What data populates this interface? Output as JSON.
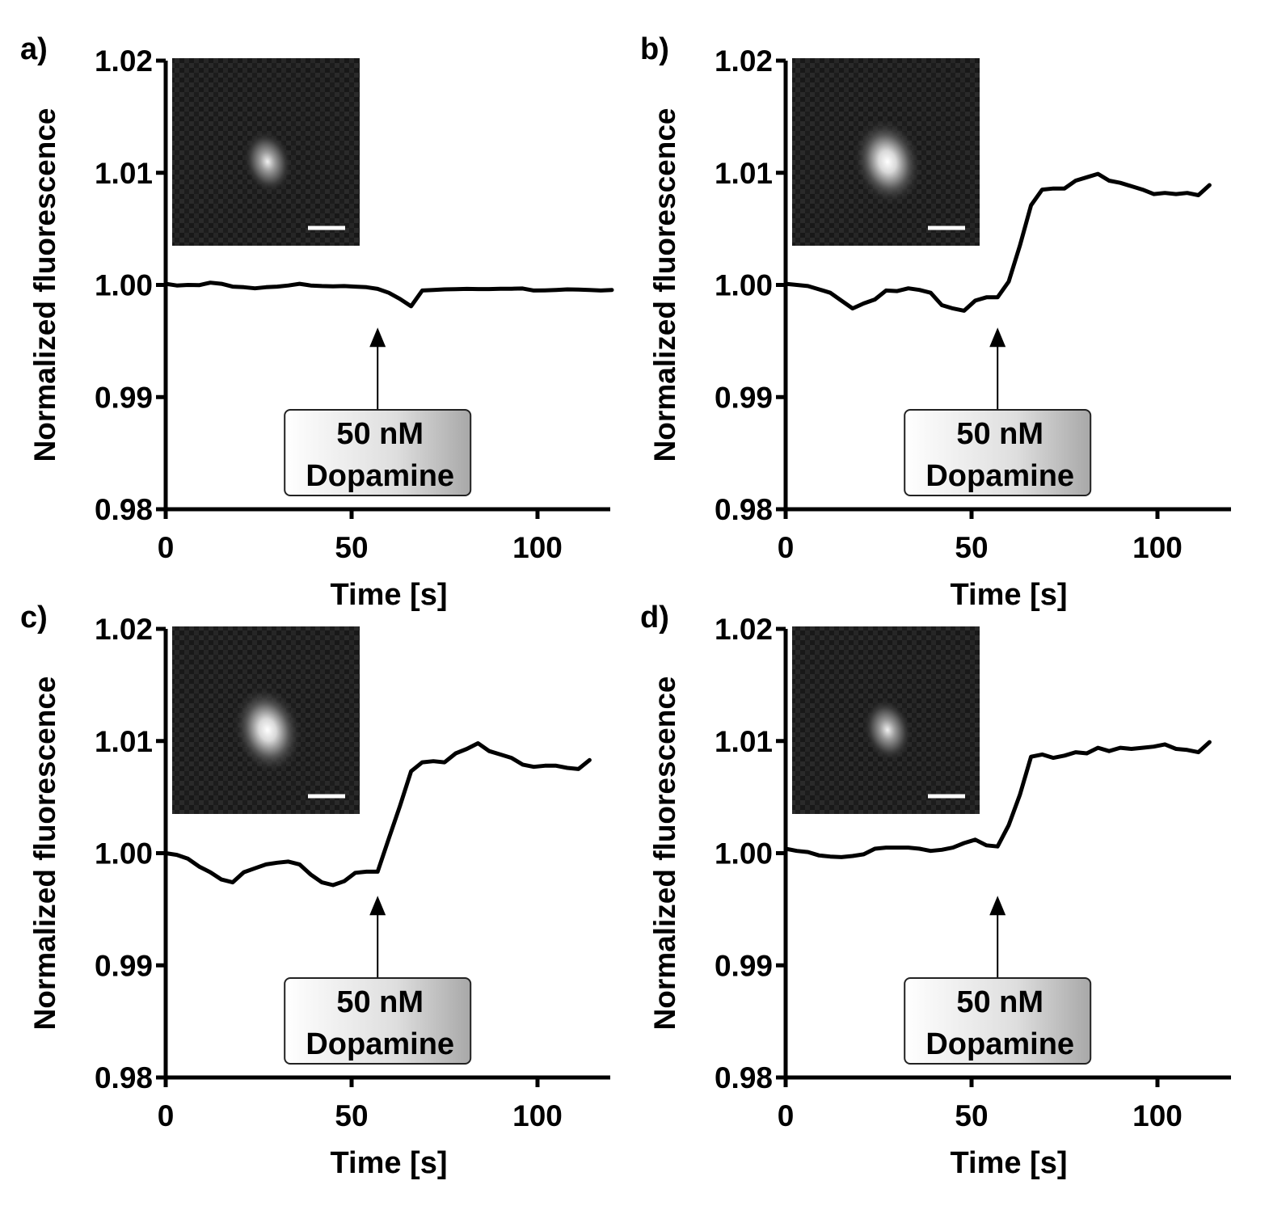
{
  "chart_data": [
    {
      "panel_label": "a)",
      "type": "line",
      "xlabel": "Time [s]",
      "ylabel": "Normalized fluorescence",
      "xlim": [
        0,
        120
      ],
      "ylim": [
        0.98,
        1.02
      ],
      "xticks": [
        "0",
        "50",
        "100"
      ],
      "yticks": [
        "0.98",
        "0.99",
        "1.00",
        "1.01",
        "1.02"
      ],
      "annotation": {
        "line1": "50 nM",
        "line2": "Dopamine",
        "x": 57
      },
      "inset": {
        "spot": "dim",
        "scale_bar": true
      },
      "series": [
        {
          "name": "trace",
          "x": [
            0,
            3,
            6,
            9,
            12,
            15,
            18,
            21,
            24,
            27,
            30,
            33,
            36,
            39,
            42,
            45,
            48,
            51,
            54,
            57,
            60,
            63,
            66,
            69,
            72,
            75,
            78,
            81,
            84,
            87,
            90,
            93,
            96,
            99,
            102,
            105,
            108,
            111,
            114,
            117,
            120
          ],
          "values": [
            1.0001,
            0.99995,
            1.0,
            0.99998,
            1.0002,
            1.0001,
            0.99985,
            0.9998,
            0.9997,
            0.9998,
            0.99985,
            0.99995,
            1.0001,
            0.99995,
            0.9999,
            0.99988,
            0.9999,
            0.99985,
            0.9998,
            0.99965,
            0.9993,
            0.99875,
            0.9981,
            0.9995,
            0.99955,
            0.9996,
            0.99962,
            0.99965,
            0.99963,
            0.99963,
            0.99966,
            0.99966,
            0.99968,
            0.9995,
            0.99952,
            0.99955,
            0.9996,
            0.99958,
            0.99955,
            0.9995,
            0.99955
          ]
        }
      ]
    },
    {
      "panel_label": "b)",
      "type": "line",
      "xlabel": "Time [s]",
      "ylabel": "Normalized fluorescence",
      "xlim": [
        0,
        120
      ],
      "ylim": [
        0.98,
        1.02
      ],
      "xticks": [
        "0",
        "50",
        "100"
      ],
      "yticks": [
        "0.98",
        "0.99",
        "1.00",
        "1.01",
        "1.02"
      ],
      "annotation": {
        "line1": "50 nM",
        "line2": "Dopamine",
        "x": 57
      },
      "inset": {
        "spot": "bright",
        "scale_bar": true
      },
      "series": [
        {
          "name": "trace",
          "x": [
            0,
            3,
            6,
            9,
            12,
            15,
            18,
            21,
            24,
            27,
            30,
            33,
            36,
            39,
            42,
            45,
            48,
            51,
            54,
            57,
            60,
            63,
            66,
            69,
            72,
            75,
            78,
            81,
            84,
            87,
            90,
            93,
            96,
            99,
            102,
            105,
            108,
            111,
            114
          ],
          "values": [
            1.0001,
            1.0,
            0.9999,
            0.9996,
            0.9993,
            0.9986,
            0.9979,
            0.99835,
            0.9987,
            0.9995,
            0.99945,
            0.9997,
            0.99955,
            0.9993,
            0.9982,
            0.9979,
            0.9977,
            0.9986,
            0.9989,
            0.9989,
            1.0003,
            1.0035,
            1.0071,
            1.0085,
            1.0086,
            1.0086,
            1.0093,
            1.0096,
            1.0099,
            1.0093,
            1.0091,
            1.0088,
            1.0085,
            1.0081,
            1.0082,
            1.0081,
            1.0082,
            1.008,
            1.0089
          ]
        }
      ]
    },
    {
      "panel_label": "c)",
      "type": "line",
      "xlabel": "Time [s]",
      "ylabel": "Normalized fluorescence",
      "xlim": [
        0,
        120
      ],
      "ylim": [
        0.98,
        1.02
      ],
      "xticks": [
        "0",
        "50",
        "100"
      ],
      "yticks": [
        "0.98",
        "0.99",
        "1.00",
        "1.01",
        "1.02"
      ],
      "annotation": {
        "line1": "50 nM",
        "line2": "Dopamine",
        "x": 57
      },
      "inset": {
        "spot": "bright",
        "scale_bar": true
      },
      "series": [
        {
          "name": "trace",
          "x": [
            0,
            3,
            6,
            9,
            12,
            15,
            18,
            21,
            24,
            27,
            30,
            33,
            36,
            39,
            42,
            45,
            48,
            51,
            54,
            57,
            60,
            63,
            66,
            69,
            72,
            75,
            78,
            81,
            84,
            87,
            90,
            93,
            96,
            99,
            102,
            105,
            108,
            111,
            114
          ],
          "values": [
            1.0,
            0.99985,
            0.9995,
            0.9988,
            0.9983,
            0.99765,
            0.9974,
            0.9983,
            0.99865,
            0.999,
            0.99915,
            0.99925,
            0.999,
            0.9981,
            0.9974,
            0.99715,
            0.9975,
            0.99825,
            0.99835,
            0.99835,
            1.0013,
            1.0042,
            1.0073,
            1.0081,
            1.0082,
            1.0081,
            1.0089,
            1.0093,
            1.0098,
            1.0091,
            1.0088,
            1.0085,
            1.0079,
            1.0077,
            1.0078,
            1.0078,
            1.0076,
            1.0075,
            1.0083
          ]
        }
      ]
    },
    {
      "panel_label": "d)",
      "type": "line",
      "xlabel": "Time [s]",
      "ylabel": "Normalized fluorescence",
      "xlim": [
        0,
        120
      ],
      "ylim": [
        0.98,
        1.02
      ],
      "xticks": [
        "0",
        "50",
        "100"
      ],
      "yticks": [
        "0.98",
        "0.99",
        "1.00",
        "1.01",
        "1.02"
      ],
      "annotation": {
        "line1": "50 nM",
        "line2": "Dopamine",
        "x": 57
      },
      "inset": {
        "spot": "dim",
        "scale_bar": true
      },
      "series": [
        {
          "name": "trace",
          "x": [
            0,
            3,
            6,
            9,
            12,
            15,
            18,
            21,
            24,
            27,
            30,
            33,
            36,
            39,
            42,
            45,
            48,
            51,
            54,
            57,
            60,
            63,
            66,
            69,
            72,
            75,
            78,
            81,
            84,
            87,
            90,
            93,
            96,
            99,
            102,
            105,
            108,
            111,
            114
          ],
          "values": [
            1.0004,
            1.0002,
            1.0001,
            0.9998,
            0.9997,
            0.99965,
            0.99975,
            0.9999,
            1.0004,
            1.0005,
            1.0005,
            1.0005,
            1.0004,
            1.0002,
            1.0003,
            1.0005,
            1.0009,
            1.0012,
            1.0007,
            1.0006,
            1.0025,
            1.0052,
            1.0086,
            1.0088,
            1.0085,
            1.0087,
            1.009,
            1.0089,
            1.0094,
            1.0091,
            1.0094,
            1.0093,
            1.0094,
            1.0095,
            1.0097,
            1.0093,
            1.0092,
            1.009,
            1.0099
          ]
        }
      ]
    }
  ]
}
